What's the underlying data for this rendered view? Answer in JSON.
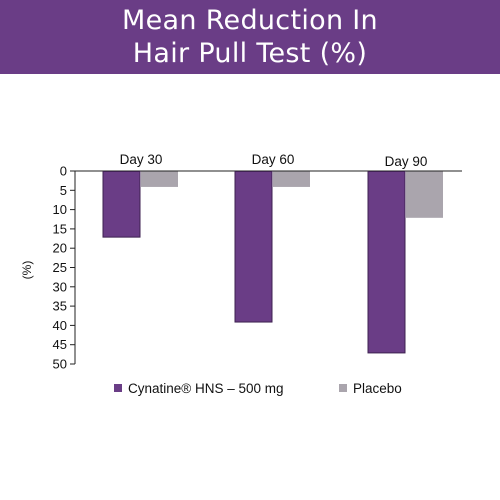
{
  "header": {
    "title_line1": "Mean Reduction In",
    "title_line2": "Hair Pull Test (%)"
  },
  "colors": {
    "banner": "#6a3d86",
    "cynatine": "#6a3d86",
    "placebo": "#aaa5ad"
  },
  "chart_data": {
    "type": "bar",
    "title": "Mean Reduction In Hair Pull Test (%)",
    "categories": [
      "Day 30",
      "Day 60",
      "Day 90"
    ],
    "series": [
      {
        "name": "Cynatine® HNS – 500 mg",
        "values": [
          17,
          39,
          47
        ]
      },
      {
        "name": "Placebo",
        "values": [
          4,
          4,
          12
        ]
      }
    ],
    "ylabel": "(%)",
    "xlabel": "",
    "ylim": [
      0,
      50
    ],
    "yticks": [
      0,
      5,
      10,
      15,
      20,
      25,
      30,
      35,
      40,
      45,
      50
    ],
    "y_axis_inverted": true,
    "category_labels_position": "top",
    "grid": false,
    "legend_position": "bottom"
  }
}
